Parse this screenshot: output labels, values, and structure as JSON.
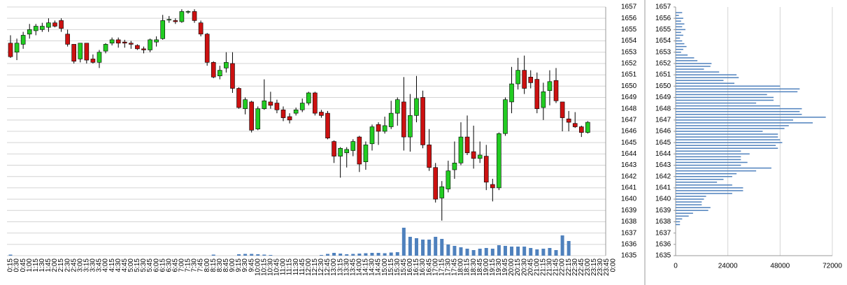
{
  "chart_data": [
    {
      "type": "candlestick",
      "categories": [
        "0:15",
        "0:30",
        "0:45",
        "1:00",
        "1:15",
        "1:30",
        "1:45",
        "2:00",
        "2:15",
        "2:30",
        "2:45",
        "3:00",
        "3:15",
        "3:30",
        "3:45",
        "4:00",
        "4:15",
        "4:30",
        "4:45",
        "5:00",
        "5:15",
        "5:30",
        "5:45",
        "6:00",
        "6:15",
        "6:30",
        "6:45",
        "7:00",
        "7:15",
        "7:30",
        "7:45",
        "8:00",
        "8:15",
        "8:30",
        "8:45",
        "9:00",
        "9:15",
        "9:30",
        "9:45",
        "10:00",
        "10:15",
        "10:30",
        "10:45",
        "11:00",
        "11:15",
        "11:30",
        "11:45",
        "12:00",
        "12:15",
        "12:30",
        "12:45",
        "13:00",
        "13:15",
        "13:30",
        "13:45",
        "14:00",
        "14:15",
        "14:30",
        "14:45",
        "15:00",
        "15:15",
        "15:30",
        "15:45",
        "16:00",
        "16:15",
        "16:30",
        "16:45",
        "17:00",
        "17:15",
        "17:30",
        "17:45",
        "18:00",
        "18:15",
        "18:30",
        "18:45",
        "19:00",
        "19:15",
        "19:30",
        "19:45",
        "20:00",
        "20:15",
        "20:30",
        "20:45",
        "21:00",
        "21:15",
        "21:30",
        "21:45",
        "22:00",
        "22:15",
        "22:30",
        "22:45",
        "23:00",
        "23:15",
        "23:30",
        "23:45",
        "0:00"
      ],
      "open": [
        1653.8,
        1653.0,
        1653.7,
        1654.6,
        1654.9,
        1655.0,
        1655.2,
        1655.6,
        1655.8,
        1654.6,
        1653.7,
        1652.4,
        1653.8,
        1652.4,
        1652.1,
        1653.1,
        1653.8,
        1654.1,
        1653.9,
        1653.8,
        1653.6,
        1653.3,
        1653.2,
        1653.9,
        1654.2,
        1655.9,
        1655.8,
        1655.7,
        1656.6,
        1656.6,
        1655.6,
        1654.6,
        1652.1,
        1650.9,
        1651.6,
        1652.0,
        1649.8,
        1648.0,
        1648.6,
        1646.2,
        1648.0,
        1648.6,
        1648.5,
        1647.9,
        1647.3,
        1647.6,
        1647.9,
        1648.5,
        1649.4,
        1647.7,
        1647.6,
        1645.1,
        1643.8,
        1644.1,
        1644.3,
        1645.5,
        1643.3,
        1644.9,
        1646.6,
        1646.0,
        1646.4,
        1647.6,
        1648.6,
        1645.5,
        1647.4,
        1649.0,
        1644.8,
        1642.8,
        1640.1,
        1640.9,
        1642.6,
        1643.2,
        1645.5,
        1644.2,
        1643.6,
        1643.8,
        1641.3,
        1641.0,
        1645.8,
        1648.6,
        1650.2,
        1651.4,
        1650.8,
        1650.6,
        1648.1,
        1649.6,
        1650.5,
        1648.6,
        1647.1,
        1646.7,
        1646.4,
        1645.9,
        null,
        null,
        null,
        null
      ],
      "high": [
        1654.5,
        1654.2,
        1654.8,
        1655.5,
        1655.5,
        1655.6,
        1656.0,
        1655.8,
        1656.0,
        1655.0,
        1653.7,
        1653.8,
        1653.8,
        1652.8,
        1653.2,
        1653.8,
        1654.3,
        1654.3,
        1654.1,
        1654.0,
        1653.7,
        1653.5,
        1654.2,
        1654.4,
        1656.3,
        1656.2,
        1656.0,
        1656.8,
        1656.7,
        1656.8,
        1655.8,
        1654.7,
        1652.2,
        1651.8,
        1653.0,
        1653.0,
        1649.9,
        1649.0,
        1648.7,
        1648.2,
        1650.6,
        1649.5,
        1648.8,
        1648.2,
        1647.6,
        1648.1,
        1648.9,
        1649.5,
        1649.5,
        1647.9,
        1647.8,
        1645.2,
        1644.6,
        1644.6,
        1645.3,
        1645.6,
        1645.1,
        1646.6,
        1646.8,
        1647.3,
        1648.7,
        1649.0,
        1650.8,
        1649.3,
        1650.9,
        1649.6,
        1646.2,
        1643.2,
        1641.6,
        1643.4,
        1645.1,
        1646.8,
        1647.4,
        1646.5,
        1645.1,
        1644.8,
        1641.8,
        1645.9,
        1649.0,
        1651.7,
        1652.5,
        1652.7,
        1651.4,
        1651.2,
        1650.3,
        1651.4,
        1651.6,
        1648.6,
        1647.8,
        1647.7,
        1646.5,
        1646.9,
        null,
        null,
        null,
        null
      ],
      "low": [
        1652.5,
        1652.3,
        1653.3,
        1654.2,
        1654.5,
        1654.8,
        1654.8,
        1655.2,
        1654.8,
        1653.5,
        1652.0,
        1652.1,
        1652.0,
        1652.0,
        1651.6,
        1652.9,
        1653.6,
        1653.4,
        1653.4,
        1653.3,
        1653.2,
        1652.9,
        1653.0,
        1653.5,
        1654.1,
        1655.6,
        1655.5,
        1655.6,
        1656.4,
        1655.6,
        1654.4,
        1651.8,
        1650.7,
        1650.6,
        1651.2,
        1649.4,
        1648.0,
        1647.5,
        1645.9,
        1646.1,
        1647.9,
        1648.0,
        1647.6,
        1646.9,
        1646.7,
        1647.4,
        1647.7,
        1648.3,
        1647.4,
        1647.2,
        1645.3,
        1643.2,
        1641.9,
        1642.8,
        1643.8,
        1642.4,
        1642.6,
        1644.3,
        1644.8,
        1645.8,
        1646.2,
        1646.5,
        1644.3,
        1644.2,
        1646.8,
        1644.5,
        1642.5,
        1639.7,
        1638.1,
        1640.6,
        1641.8,
        1643.0,
        1643.9,
        1642.7,
        1643.2,
        1640.8,
        1639.8,
        1640.8,
        1645.6,
        1647.6,
        1649.7,
        1649.3,
        1649.8,
        1647.6,
        1647.0,
        1648.3,
        1648.5,
        1646.0,
        1646.0,
        1646.3,
        1645.5,
        1645.8,
        null,
        null,
        null,
        null
      ],
      "close": [
        1652.6,
        1653.8,
        1654.5,
        1655.0,
        1655.3,
        1655.3,
        1655.6,
        1655.3,
        1655.1,
        1653.7,
        1652.2,
        1653.8,
        1652.3,
        1652.1,
        1653.0,
        1653.7,
        1654.1,
        1653.8,
        1653.8,
        1653.7,
        1653.3,
        1653.2,
        1654.1,
        1654.1,
        1655.8,
        1655.9,
        1655.7,
        1656.6,
        1656.6,
        1655.8,
        1654.6,
        1652.1,
        1650.8,
        1651.4,
        1652.1,
        1649.8,
        1648.1,
        1648.8,
        1646.1,
        1648.0,
        1648.7,
        1648.3,
        1647.9,
        1647.2,
        1647.0,
        1647.9,
        1648.5,
        1649.4,
        1647.6,
        1647.4,
        1645.4,
        1643.8,
        1644.5,
        1644.4,
        1645.1,
        1643.1,
        1644.8,
        1646.4,
        1646.0,
        1646.5,
        1647.6,
        1648.8,
        1645.5,
        1647.4,
        1648.9,
        1644.8,
        1642.8,
        1640.0,
        1641.1,
        1642.5,
        1643.2,
        1645.5,
        1644.1,
        1643.6,
        1643.9,
        1641.5,
        1641.0,
        1645.8,
        1648.8,
        1650.2,
        1651.4,
        1649.8,
        1650.3,
        1648.0,
        1649.5,
        1650.4,
        1648.7,
        1647.2,
        1646.8,
        1646.4,
        1645.9,
        1646.8,
        null,
        null,
        null,
        null
      ],
      "volume": [
        150,
        null,
        null,
        null,
        null,
        null,
        null,
        null,
        null,
        null,
        null,
        null,
        null,
        null,
        null,
        null,
        null,
        null,
        null,
        null,
        null,
        null,
        null,
        null,
        null,
        null,
        null,
        null,
        null,
        null,
        null,
        null,
        150,
        null,
        null,
        null,
        200,
        250,
        250,
        200,
        150,
        100,
        null,
        null,
        null,
        null,
        null,
        null,
        null,
        100,
        250,
        400,
        300,
        200,
        250,
        300,
        350,
        400,
        400,
        350,
        450,
        500,
        4000,
        2700,
        2500,
        2300,
        2300,
        2700,
        2400,
        1600,
        1400,
        1200,
        1000,
        800,
        1000,
        1100,
        1000,
        1500,
        1400,
        1300,
        1300,
        1300,
        1100,
        900,
        1000,
        1100,
        800,
        2900,
        2100,
        null,
        null,
        null,
        null,
        null,
        null,
        null
      ],
      "up_color": "#22cc22",
      "down_color": "#cc1111",
      "volume_color": "#4f81bd",
      "ylim": [
        1635,
        1657
      ],
      "yticks": [
        1635,
        1636,
        1637,
        1638,
        1639,
        1640,
        1641,
        1642,
        1643,
        1644,
        1645,
        1646,
        1647,
        1648,
        1649,
        1650,
        1651,
        1652,
        1653,
        1654,
        1655,
        1656,
        1657
      ],
      "grid": true
    },
    {
      "type": "hbar",
      "y": [
        1656.5,
        1656.25,
        1656,
        1655.75,
        1655.5,
        1655.25,
        1655,
        1654.75,
        1654.5,
        1654.25,
        1654,
        1653.75,
        1653.5,
        1653.25,
        1653,
        1652.75,
        1652.5,
        1652.25,
        1652,
        1651.75,
        1651.5,
        1651.25,
        1651,
        1650.75,
        1650.5,
        1650.25,
        1650,
        1649.75,
        1649.5,
        1649.25,
        1649,
        1648.75,
        1648.5,
        1648.25,
        1648,
        1647.75,
        1647.5,
        1647.25,
        1647,
        1646.75,
        1646.5,
        1646.25,
        1646,
        1645.75,
        1645.5,
        1645.25,
        1645,
        1644.75,
        1644.5,
        1644.25,
        1644,
        1643.75,
        1643.5,
        1643.25,
        1643,
        1642.75,
        1642.5,
        1642.25,
        1642,
        1641.75,
        1641.5,
        1641.25,
        1641,
        1640.75,
        1640.5,
        1640.25,
        1640,
        1639.75,
        1639.5,
        1639.25,
        1639,
        1638.75,
        1638.5,
        1638.25,
        1638,
        1637.75
      ],
      "values": [
        3000,
        1500,
        3500,
        2500,
        4000,
        3000,
        4500,
        2500,
        3500,
        2000,
        3000,
        4000,
        5000,
        3500,
        2500,
        5500,
        8500,
        10000,
        16500,
        16000,
        13000,
        20000,
        28000,
        29000,
        22000,
        27000,
        48000,
        57000,
        56000,
        42000,
        45000,
        45000,
        37000,
        48000,
        58000,
        57000,
        58000,
        69000,
        54000,
        63000,
        52000,
        50000,
        40000,
        47000,
        47000,
        48000,
        49000,
        46000,
        47000,
        30000,
        34000,
        30000,
        30000,
        33000,
        30000,
        44000,
        37000,
        28000,
        26000,
        22000,
        19000,
        26000,
        31000,
        31000,
        26000,
        14000,
        13000,
        12000,
        12000,
        16000,
        15000,
        8000,
        6000,
        3000,
        2000,
        2000
      ],
      "color": "#4f81bd",
      "xlim": [
        0,
        72000
      ],
      "xticks": [
        0,
        24000,
        48000,
        72000
      ],
      "ylim": [
        1635,
        1657
      ],
      "yticks": [
        1635,
        1636,
        1637,
        1638,
        1639,
        1640,
        1641,
        1642,
        1643,
        1644,
        1645,
        1646,
        1647,
        1648,
        1649,
        1650,
        1651,
        1652,
        1653,
        1654,
        1655,
        1656,
        1657
      ],
      "grid": true
    }
  ]
}
